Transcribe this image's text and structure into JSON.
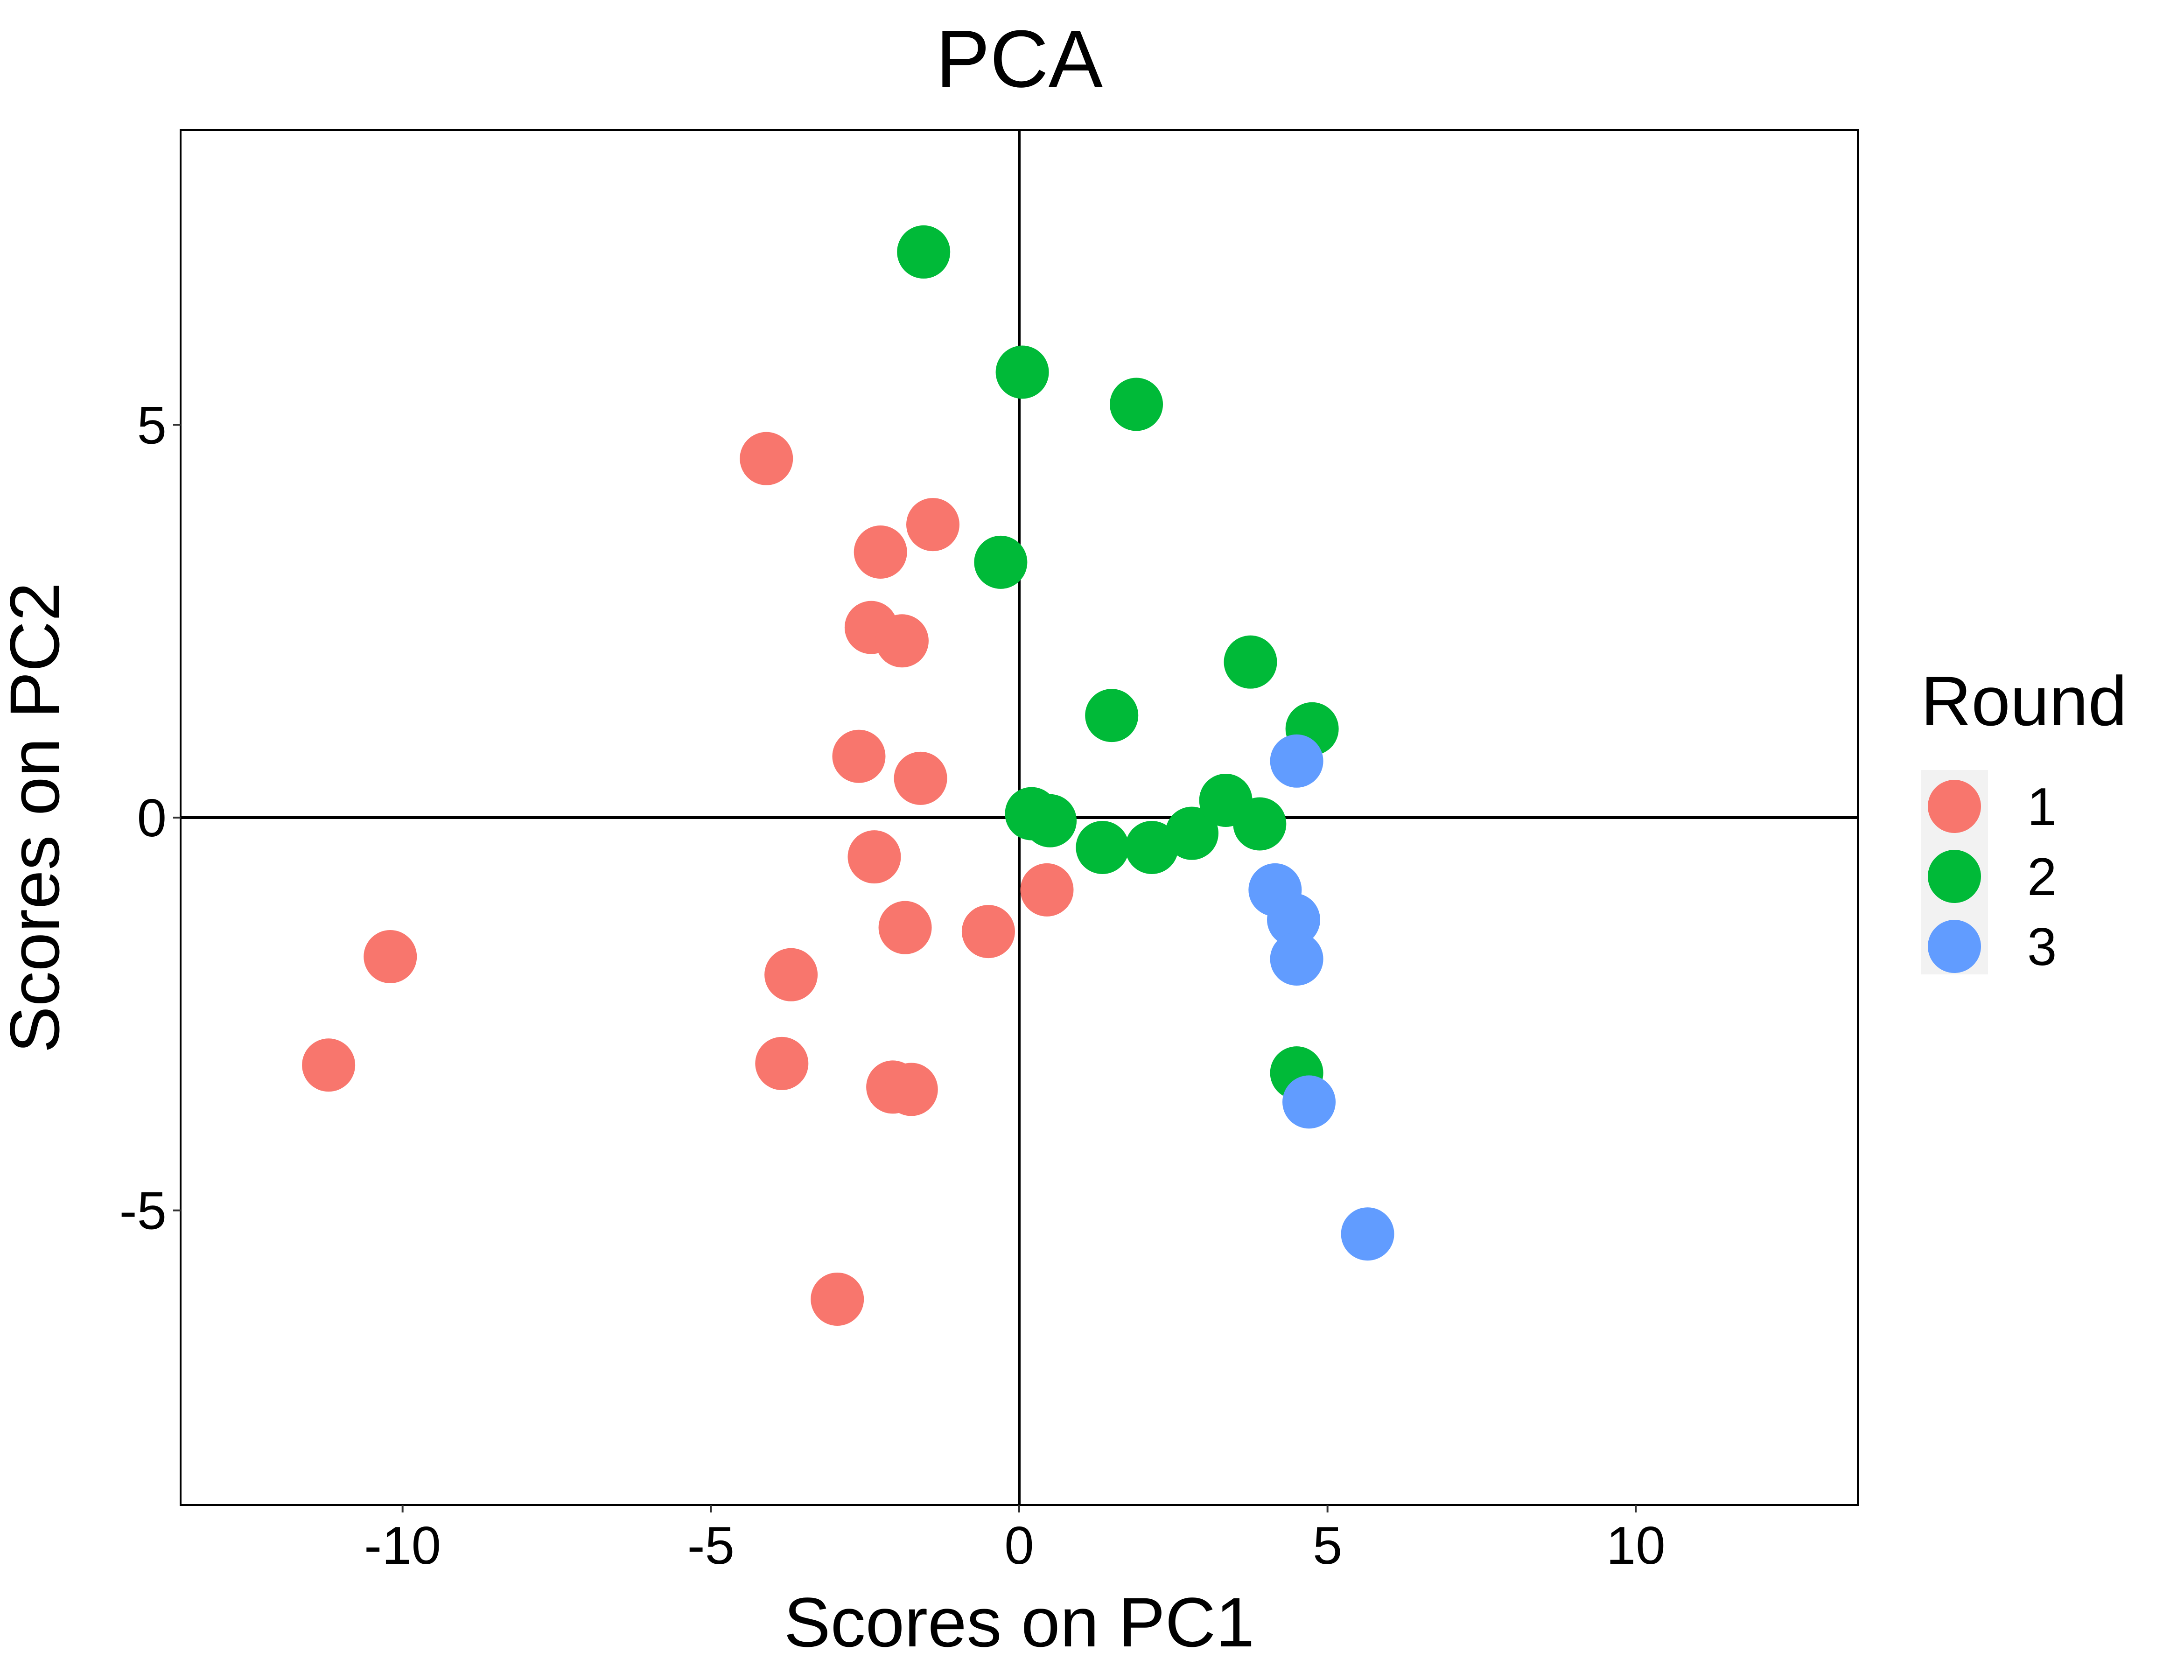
{
  "chart_data": {
    "type": "scatter",
    "title": "PCA",
    "xlabel": "Scores on PC1",
    "ylabel": "Scores on PC2",
    "xlim": [
      -13.6,
      13.6
    ],
    "ylim": [
      -8.75,
      8.75
    ],
    "x_ticks": [
      -10,
      -5,
      0,
      5,
      10
    ],
    "x_tick_labels": [
      "-10",
      "-5",
      "0",
      "5",
      "10"
    ],
    "y_ticks": [
      -5,
      0,
      5
    ],
    "y_tick_labels": [
      "-5",
      "0",
      "5"
    ],
    "grid": false,
    "reference_lines": {
      "x": 0,
      "y": 0
    },
    "legend": {
      "title": "Round",
      "placement": "right",
      "entries": [
        {
          "label": "1",
          "color": "#F8766D"
        },
        {
          "label": "2",
          "color": "#00BA38"
        },
        {
          "label": "3",
          "color": "#619CFF"
        }
      ]
    },
    "series": [
      {
        "name": "1",
        "color": "#F8766D",
        "points": [
          {
            "x": -11.2,
            "y": -3.15
          },
          {
            "x": -10.2,
            "y": -1.77
          },
          {
            "x": -4.1,
            "y": 4.57
          },
          {
            "x": -1.4,
            "y": 3.73
          },
          {
            "x": -2.25,
            "y": 3.38
          },
          {
            "x": -2.4,
            "y": 2.42
          },
          {
            "x": -1.9,
            "y": 2.25
          },
          {
            "x": -2.6,
            "y": 0.78
          },
          {
            "x": -1.6,
            "y": 0.5
          },
          {
            "x": -2.35,
            "y": -0.5
          },
          {
            "x": -1.85,
            "y": -1.4
          },
          {
            "x": -0.5,
            "y": -1.45
          },
          {
            "x": 0.45,
            "y": -0.92
          },
          {
            "x": -3.7,
            "y": -2.0
          },
          {
            "x": -3.85,
            "y": -3.13
          },
          {
            "x": -2.05,
            "y": -3.43
          },
          {
            "x": -1.75,
            "y": -3.46
          },
          {
            "x": -2.95,
            "y": -6.13
          }
        ]
      },
      {
        "name": "2",
        "color": "#00BA38",
        "points": [
          {
            "x": -1.55,
            "y": 7.2
          },
          {
            "x": 0.05,
            "y": 5.67
          },
          {
            "x": 1.9,
            "y": 5.26
          },
          {
            "x": -0.3,
            "y": 3.25
          },
          {
            "x": 3.75,
            "y": 1.98
          },
          {
            "x": 1.5,
            "y": 1.3
          },
          {
            "x": 4.75,
            "y": 1.13
          },
          {
            "x": 0.2,
            "y": 0.05
          },
          {
            "x": 0.5,
            "y": -0.04
          },
          {
            "x": 1.35,
            "y": -0.38
          },
          {
            "x": 2.15,
            "y": -0.38
          },
          {
            "x": 2.8,
            "y": -0.2
          },
          {
            "x": 3.35,
            "y": 0.22
          },
          {
            "x": 3.9,
            "y": -0.08
          },
          {
            "x": 4.5,
            "y": -3.25
          }
        ]
      },
      {
        "name": "3",
        "color": "#619CFF",
        "points": [
          {
            "x": 4.5,
            "y": 0.72
          },
          {
            "x": 4.15,
            "y": -0.92
          },
          {
            "x": 4.45,
            "y": -1.3
          },
          {
            "x": 4.5,
            "y": -1.8
          },
          {
            "x": 4.7,
            "y": -3.62
          },
          {
            "x": 5.65,
            "y": -5.3
          }
        ]
      }
    ]
  }
}
